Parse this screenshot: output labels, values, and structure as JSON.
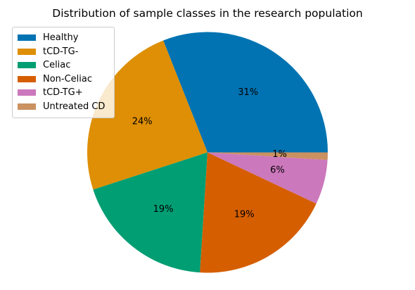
{
  "chart_data": {
    "type": "pie",
    "title": "Distribution of sample classes in the research population",
    "categories": [
      "Healthy",
      "tCD-TG-",
      "Celiac",
      "Non-Celiac",
      "tCD-TG+",
      "Untreated CD"
    ],
    "values": [
      31,
      24,
      19,
      19,
      6,
      1
    ],
    "labels": [
      "31%",
      "24%",
      "19%",
      "19%",
      "6%",
      "1%"
    ],
    "colors": [
      "#0173b2",
      "#de8f05",
      "#029e73",
      "#d55e00",
      "#cc78bc",
      "#ca9161"
    ],
    "legend": "upper-left",
    "start_angle_deg": 0,
    "direction": "counterclockwise"
  }
}
